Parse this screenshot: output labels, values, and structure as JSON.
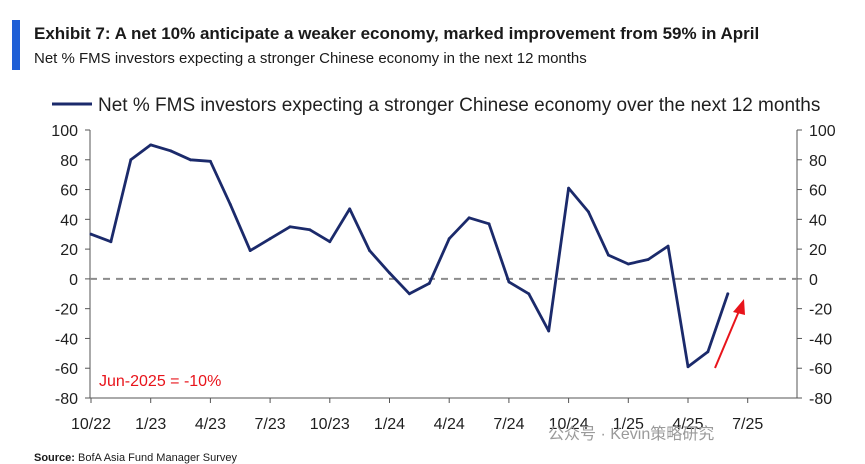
{
  "header": {
    "title": "Exhibit 7: A net 10% anticipate a weaker economy, marked improvement from 59% in April",
    "subtitle": "Net % FMS investors expecting a stronger Chinese economy in the next 12 months"
  },
  "footer": {
    "source_label": "Source:",
    "source_value": "BofA Asia Fund Manager Survey",
    "watermark": "公众号 · Kevin策略研究"
  },
  "colors": {
    "line": "#1b2a6b",
    "accent": "#1f5fd6",
    "annotation": "#e8141b",
    "zero_line": "#8c8c8c"
  },
  "chart_data": {
    "type": "line",
    "title": "",
    "xlabel": "",
    "ylabel": "",
    "ylim": [
      -80,
      100
    ],
    "yticks": [
      100,
      80,
      60,
      40,
      20,
      0,
      -20,
      -40,
      -60,
      -80
    ],
    "grid": false,
    "legend_position": "top",
    "x_tick_labels": [
      "10/22",
      "1/23",
      "4/23",
      "7/23",
      "10/23",
      "1/24",
      "4/24",
      "7/24",
      "10/24",
      "1/25",
      "4/25",
      "7/25"
    ],
    "series": [
      {
        "name": "Net % FMS investors expecting a stronger Chinese economy over the next 12 months",
        "color": "#1b2a6b",
        "x": [
          "10/22",
          "11/22",
          "12/22",
          "1/23",
          "2/23",
          "3/23",
          "4/23",
          "5/23",
          "6/23",
          "7/23",
          "8/23",
          "9/23",
          "10/23",
          "11/23",
          "12/23",
          "1/24",
          "2/24",
          "3/24",
          "4/24",
          "5/24",
          "6/24",
          "7/24",
          "8/24",
          "9/24",
          "10/24",
          "11/24",
          "12/24",
          "1/25",
          "2/25",
          "3/25",
          "4/25",
          "5/25",
          "6/25"
        ],
        "values": [
          30,
          25,
          80,
          90,
          86,
          80,
          79,
          50,
          19,
          27,
          35,
          33,
          25,
          47,
          19,
          4,
          -10,
          -3,
          27,
          41,
          37,
          -2,
          -10,
          -35,
          61,
          45,
          16,
          10,
          13,
          22,
          -59,
          -49,
          -10
        ]
      }
    ],
    "annotations": [
      {
        "text": "Jun-2025 = -10%",
        "color": "#e8141b"
      }
    ]
  }
}
